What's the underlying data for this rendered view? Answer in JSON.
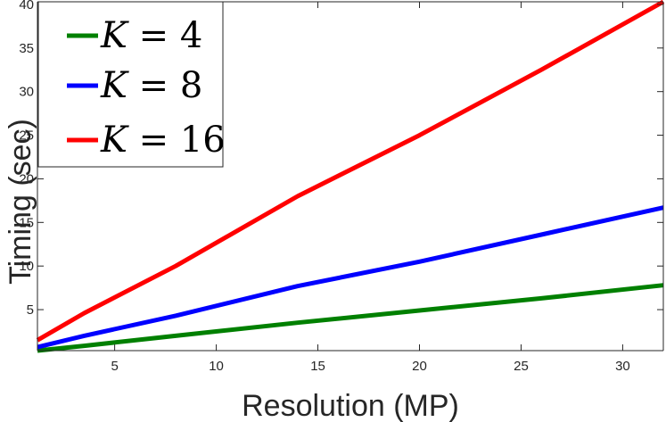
{
  "chart_data": {
    "type": "line",
    "xlabel": "Resolution (MP)",
    "ylabel": "Timing (sec)",
    "xlim": [
      1.2,
      32
    ],
    "ylim": [
      0.3,
      40.3
    ],
    "x_ticks": [
      5,
      10,
      15,
      20,
      25,
      30
    ],
    "y_ticks": [
      5,
      10,
      15,
      20,
      25,
      30,
      35,
      40
    ],
    "grid": false,
    "legend_position": "top-left",
    "series": [
      {
        "name": "K = 4",
        "name_parts": {
          "var": "K",
          "op": "=",
          "num": "4"
        },
        "color": "#008000",
        "x": [
          1.2,
          3.5,
          8,
          14,
          20,
          26,
          32
        ],
        "y": [
          0.3,
          0.85,
          2.0,
          3.5,
          4.9,
          6.3,
          7.8
        ]
      },
      {
        "name": "K = 8",
        "name_parts": {
          "var": "K",
          "op": "=",
          "num": "8"
        },
        "color": "#0000ff",
        "x": [
          1.2,
          3.5,
          8,
          14,
          20,
          26,
          32
        ],
        "y": [
          0.7,
          2.0,
          4.3,
          7.7,
          10.5,
          13.6,
          16.7
        ]
      },
      {
        "name": "K = 16",
        "name_parts": {
          "var": "K",
          "op": "=",
          "num": "16"
        },
        "color": "#ff0000",
        "x": [
          1.2,
          3.5,
          8,
          14,
          20,
          26,
          32
        ],
        "y": [
          1.5,
          4.6,
          10.0,
          18.0,
          25.0,
          32.5,
          40.3
        ]
      }
    ]
  }
}
